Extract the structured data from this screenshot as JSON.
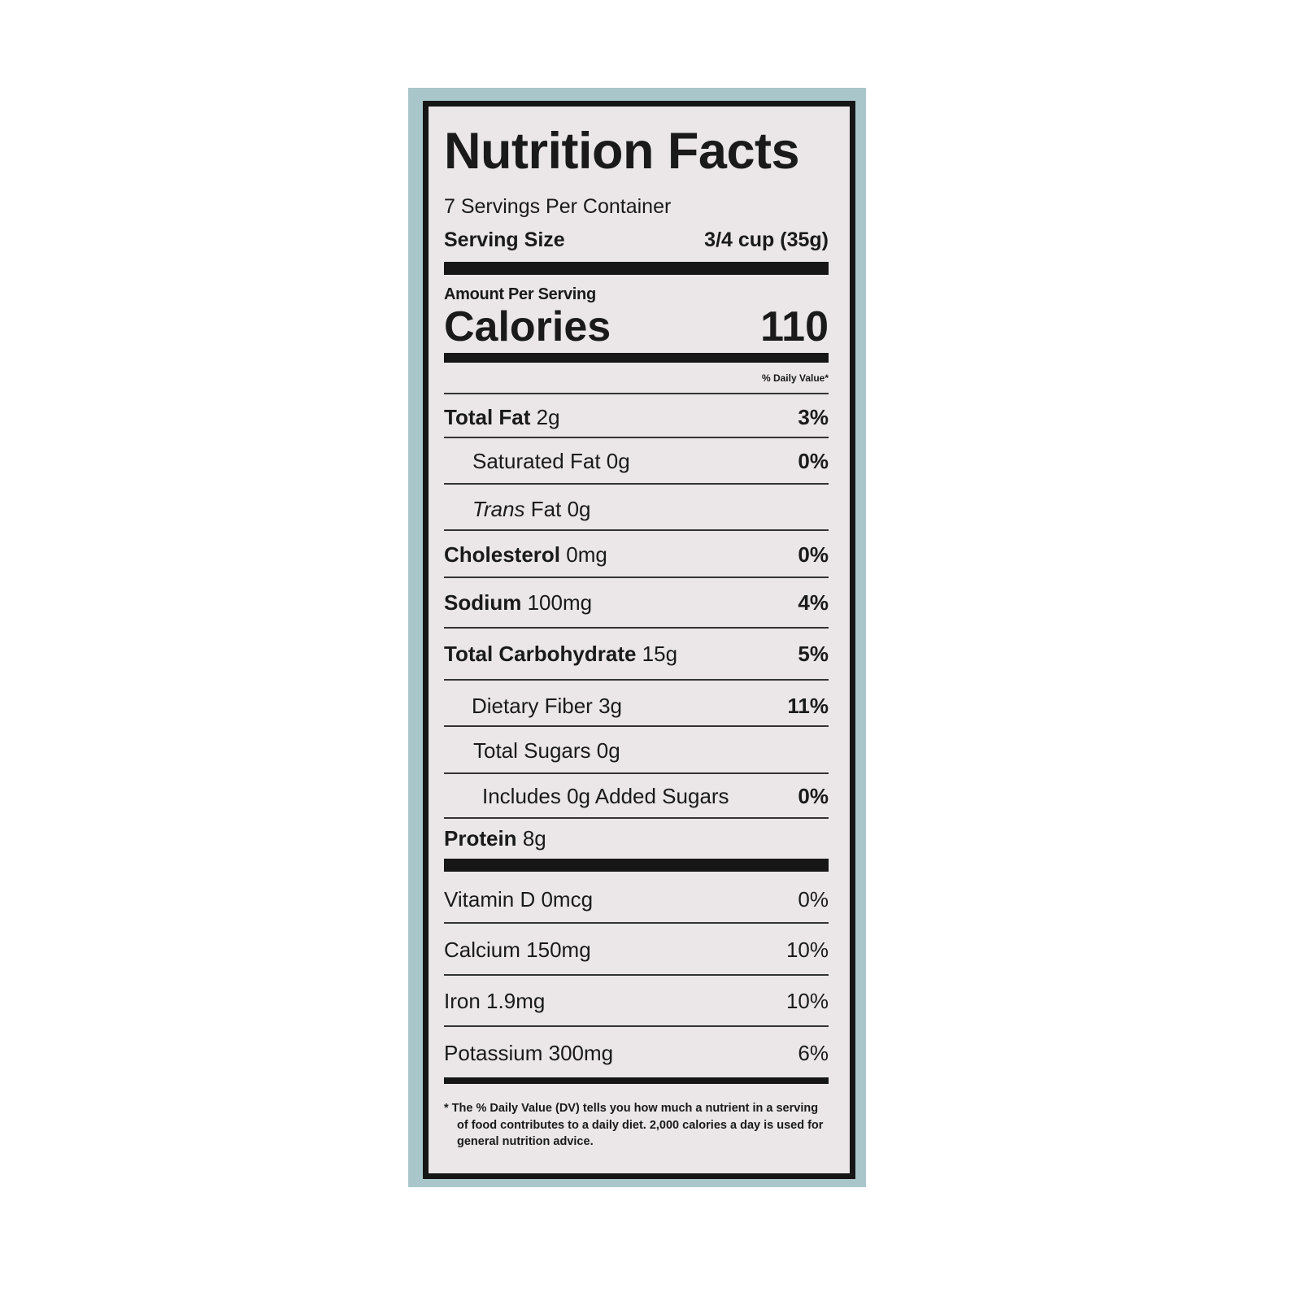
{
  "title": "Nutrition Facts",
  "servings_per_container": "7 Servings Per Container",
  "serving_size": {
    "label": "Serving Size",
    "value": "3/4 cup (35g)"
  },
  "amount_per_serving": "Amount Per Serving",
  "calories": {
    "label": "Calories",
    "value": "110"
  },
  "daily_value_header": "% Daily Value*",
  "nutrients": [
    {
      "name": "Total Fat",
      "amount": "2g",
      "dv": "3%"
    },
    {
      "name": "Saturated Fat",
      "amount": "0g",
      "dv": "0%"
    },
    {
      "name": "Trans",
      "name_rest": "Fat",
      "amount": "0g",
      "dv": ""
    },
    {
      "name": "Cholesterol",
      "amount": "0mg",
      "dv": "0%"
    },
    {
      "name": "Sodium",
      "amount": "100mg",
      "dv": "4%"
    },
    {
      "name": "Total Carbohydrate",
      "amount": "15g",
      "dv": "5%"
    },
    {
      "name": "Dietary Fiber",
      "amount": "3g",
      "dv": "11%"
    },
    {
      "name": "Total Sugars",
      "amount": "0g",
      "dv": ""
    },
    {
      "name": "Includes 0g Added Sugars",
      "amount": "",
      "dv": "0%"
    },
    {
      "name": "Protein",
      "amount": "8g",
      "dv": ""
    }
  ],
  "vitamins": [
    {
      "name": "Vitamin D",
      "amount": "0mcg",
      "dv": "0%"
    },
    {
      "name": "Calcium",
      "amount": "150mg",
      "dv": "10%"
    },
    {
      "name": "Iron",
      "amount": "1.9mg",
      "dv": "10%"
    },
    {
      "name": "Potassium",
      "amount": "300mg",
      "dv": "6%"
    }
  ],
  "footnote": "* The % Daily Value (DV) tells you how much a nutrient in a serving of food contributes to a daily diet. 2,000 calories a day is used for general nutrition advice.",
  "colors": {
    "box_background": "#a9c6ca",
    "label_background": "#ebe6e8",
    "ink": "#161616"
  }
}
